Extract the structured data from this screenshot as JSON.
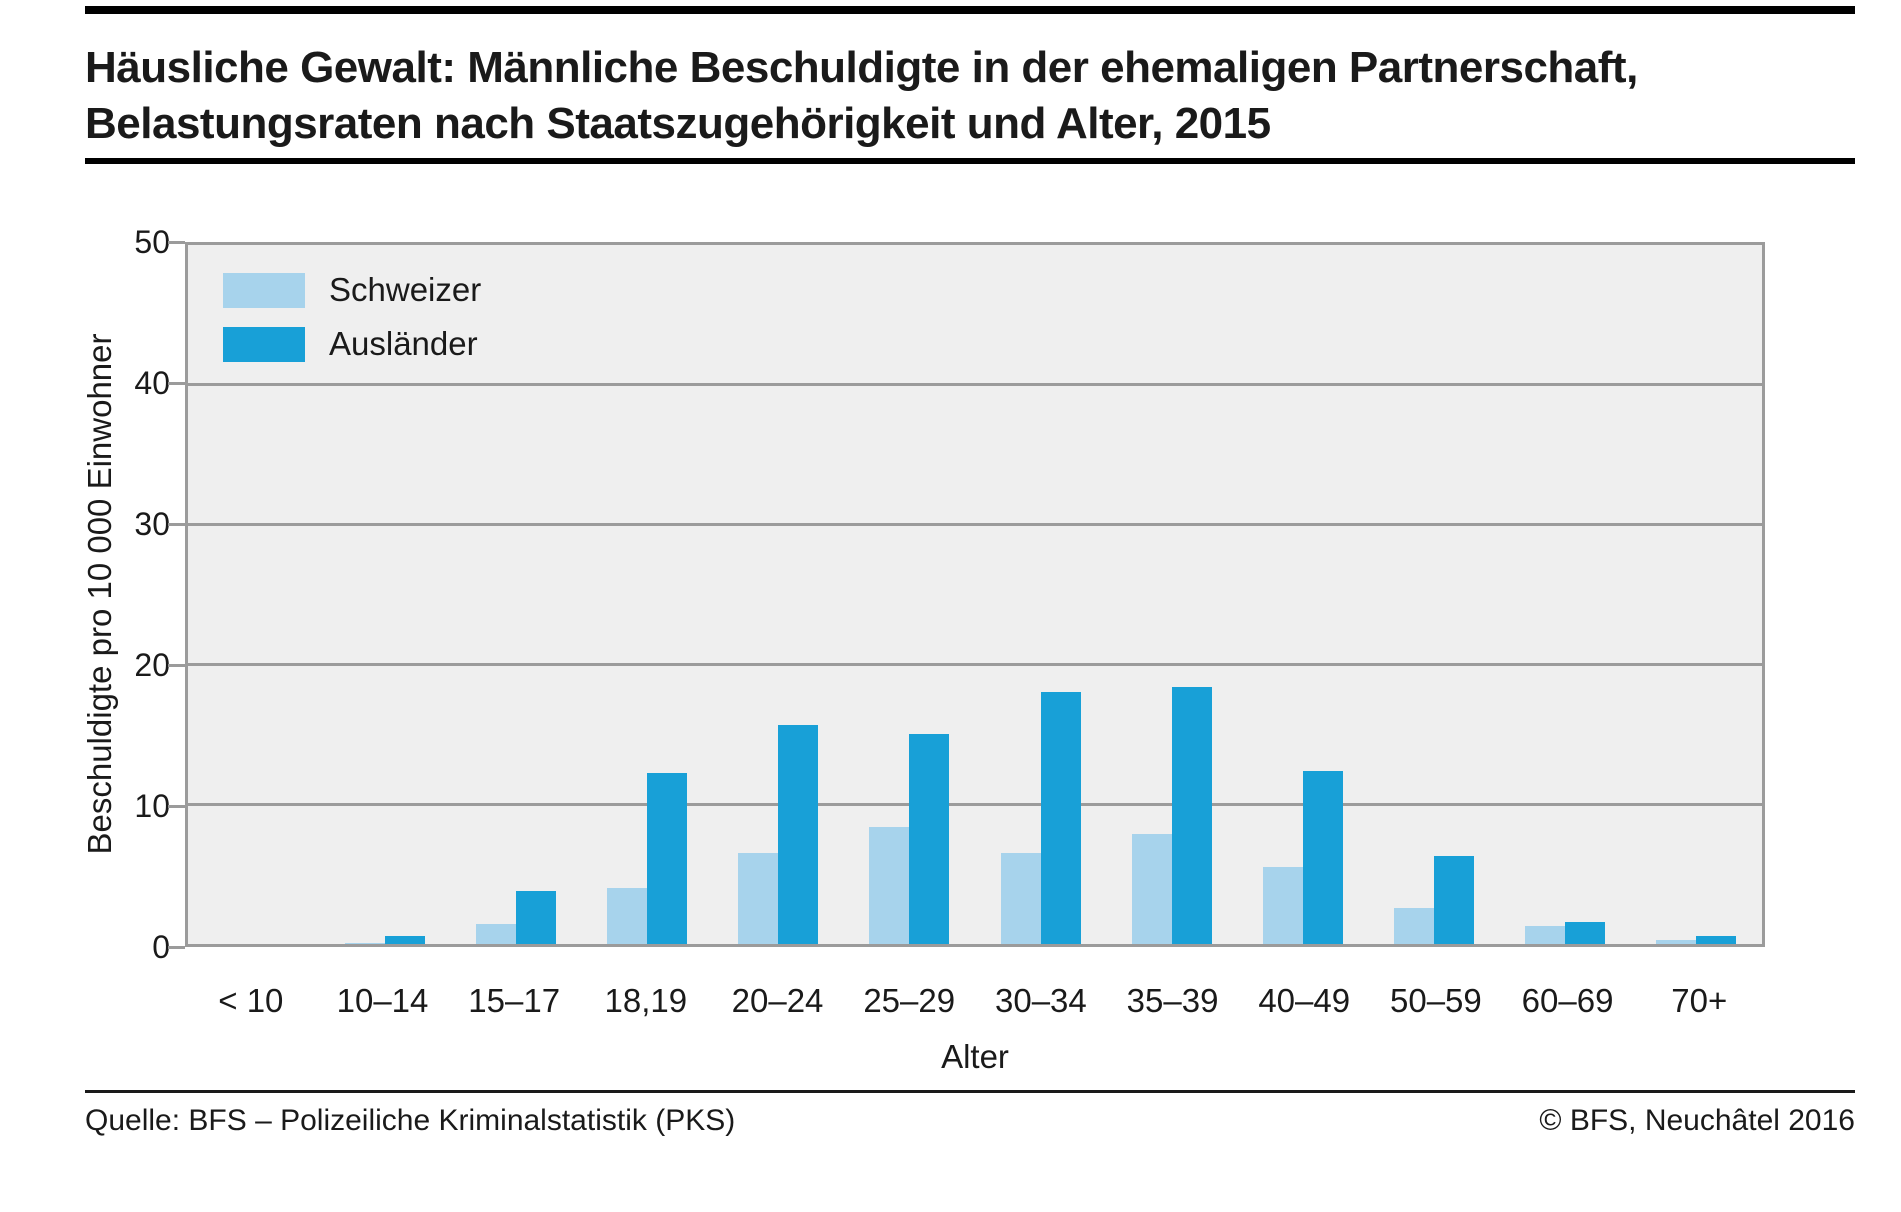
{
  "header": {
    "title_line1": "Häusliche Gewalt: Männliche Beschuldigte in der ehemaligen Partnerschaft,",
    "title_line2": "Belastungsraten nach Staatszugehörigkeit und Alter, 2015"
  },
  "chart_data": {
    "type": "bar",
    "title": "Häusliche Gewalt: Männliche Beschuldigte in der ehemaligen Partnerschaft, Belastungsraten nach Staatszugehörigkeit und Alter, 2015",
    "categories": [
      "< 10",
      "10–14",
      "15–17",
      "18,19",
      "20–24",
      "25–29",
      "30–34",
      "35–39",
      "40–49",
      "50–59",
      "60–69",
      "70+"
    ],
    "series": [
      {
        "name": "Schweizer",
        "color": "#A7D3EC",
        "values": [
          0,
          0.1,
          1.4,
          4.0,
          6.5,
          8.4,
          6.5,
          7.9,
          5.5,
          2.6,
          1.3,
          0.3
        ]
      },
      {
        "name": "Ausländer",
        "color": "#18A0D7",
        "values": [
          0,
          0.6,
          3.8,
          12.2,
          15.7,
          15.0,
          18.0,
          18.4,
          12.4,
          6.3,
          1.6,
          0.6
        ]
      }
    ],
    "xlabel": "Alter",
    "ylabel": "Beschuldigte pro 10 000 Einwohner",
    "ylim": [
      0,
      50
    ],
    "yticks": [
      0,
      10,
      20,
      30,
      40,
      50
    ],
    "grid": true,
    "legend_position": "top-left"
  },
  "footer": {
    "source": "Quelle: BFS – Polizeiliche Kriminalstatistik (PKS)",
    "copyright": "© BFS, Neuchâtel 2016"
  },
  "colors": {
    "plot_background": "#EFEFEF",
    "grid": "#9B9B9B",
    "text": "#1A1A1A",
    "rule": "#000000",
    "schweizer": "#A7D3EC",
    "auslaender": "#18A0D7"
  }
}
